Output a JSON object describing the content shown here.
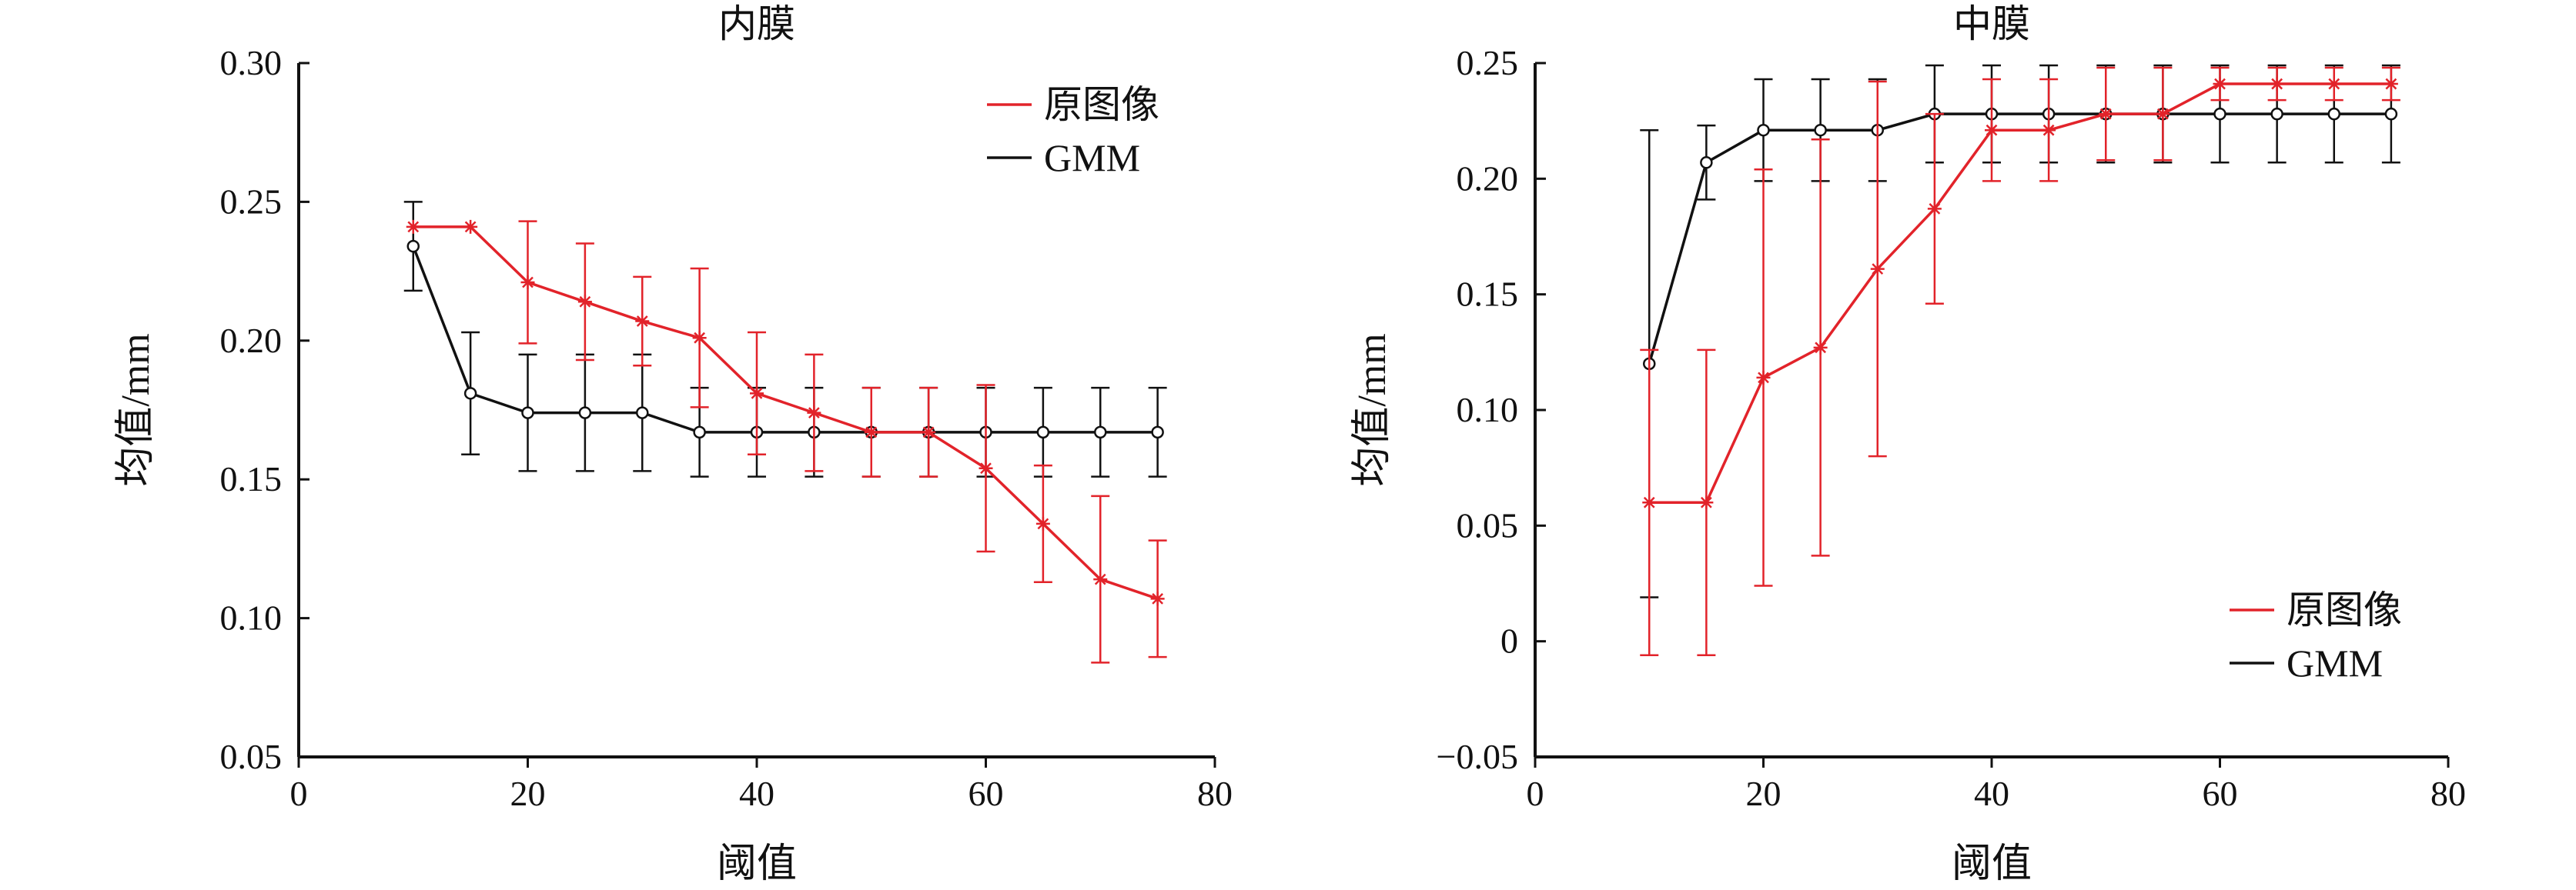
{
  "colors": {
    "original": "#e2232a",
    "gmm": "#111111"
  },
  "chart_data": [
    {
      "type": "line",
      "title": "内膜",
      "xlabel": "阈值",
      "ylabel": "均值/mm",
      "xlim": [
        0,
        80
      ],
      "ylim": [
        0.05,
        0.3
      ],
      "xticks": [
        0,
        20,
        40,
        60,
        80
      ],
      "xtick_labels": [
        "0",
        "20",
        "40",
        "60",
        "80"
      ],
      "yticks": [
        0.05,
        0.1,
        0.15,
        0.2,
        0.25,
        0.3
      ],
      "ytick_labels": [
        "0.05",
        "0.10",
        "0.15",
        "0.20",
        "0.25",
        "0.30"
      ],
      "legend": "top-right",
      "x": [
        10,
        15,
        20,
        25,
        30,
        35,
        40,
        45,
        50,
        55,
        60,
        65,
        70,
        75
      ],
      "series": [
        {
          "name": "原图像",
          "marker": "asterisk",
          "values": [
            0.241,
            0.241,
            0.221,
            0.214,
            0.207,
            0.201,
            0.181,
            0.174,
            0.167,
            0.167,
            0.154,
            0.134,
            0.114,
            0.107
          ],
          "err": [
            0,
            0,
            0.022,
            0.021,
            0.016,
            0.025,
            0.022,
            0.021,
            0.016,
            0.016,
            0.03,
            0.021,
            0.03,
            0.021
          ]
        },
        {
          "name": "GMM",
          "marker": "circle",
          "values": [
            0.234,
            0.181,
            0.174,
            0.174,
            0.174,
            0.167,
            0.167,
            0.167,
            0.167,
            0.167,
            0.167,
            0.167,
            0.167,
            0.167
          ],
          "err": [
            0.016,
            0.022,
            0.021,
            0.021,
            0.021,
            0.016,
            0.016,
            0.016,
            0.016,
            0.016,
            0.016,
            0.016,
            0.016,
            0.016
          ]
        }
      ]
    },
    {
      "type": "line",
      "title": "中膜",
      "xlabel": "阈值",
      "ylabel": "均值/mm",
      "xlim": [
        0,
        80
      ],
      "ylim": [
        -0.05,
        0.25
      ],
      "xticks": [
        0,
        20,
        40,
        60,
        80
      ],
      "xtick_labels": [
        "0",
        "20",
        "40",
        "60",
        "80"
      ],
      "yticks": [
        -0.05,
        0,
        0.05,
        0.1,
        0.15,
        0.2,
        0.25
      ],
      "ytick_labels": [
        "−0.05",
        "0",
        "0.05",
        "0.10",
        "0.15",
        "0.20",
        "0.25"
      ],
      "legend": "bottom-right",
      "x": [
        10,
        15,
        20,
        25,
        30,
        35,
        40,
        45,
        50,
        55,
        60,
        65,
        70,
        75
      ],
      "series": [
        {
          "name": "原图像",
          "marker": "asterisk",
          "values": [
            0.06,
            0.06,
            0.114,
            0.127,
            0.161,
            0.187,
            0.221,
            0.221,
            0.228,
            0.228,
            0.241,
            0.241,
            0.241,
            0.241
          ],
          "err": [
            0.066,
            0.066,
            0.09,
            0.09,
            0.081,
            0.041,
            0.022,
            0.022,
            0.02,
            0.02,
            0.007,
            0.007,
            0.007,
            0.007
          ]
        },
        {
          "name": "GMM",
          "marker": "circle",
          "values": [
            0.12,
            0.207,
            0.221,
            0.221,
            0.221,
            0.228,
            0.228,
            0.228,
            0.228,
            0.228,
            0.228,
            0.228,
            0.228,
            0.228
          ],
          "err": [
            0.101,
            0.016,
            0.022,
            0.022,
            0.022,
            0.021,
            0.021,
            0.021,
            0.021,
            0.021,
            0.021,
            0.021,
            0.021,
            0.021
          ]
        }
      ]
    }
  ]
}
